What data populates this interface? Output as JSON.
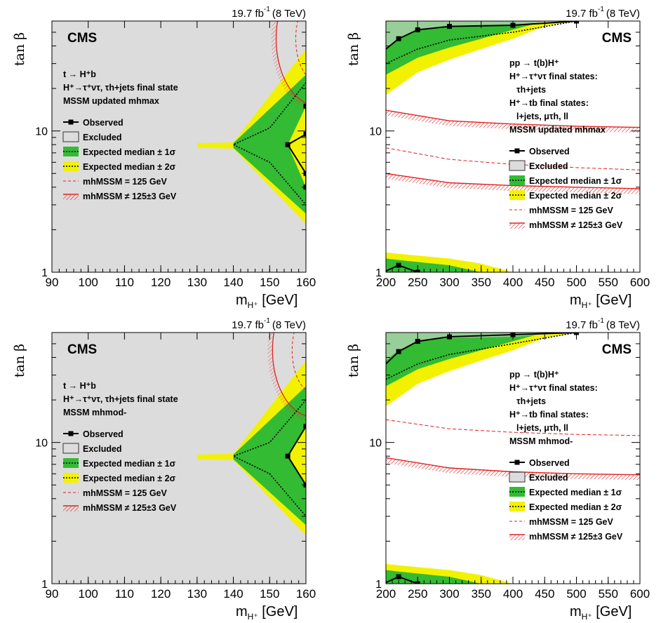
{
  "common": {
    "lumi_label": "19.7 fb",
    "lumi_sup": "-1",
    "energy_label": "(8 TeV)",
    "cms_label": "CMS",
    "ylabel": "tan β",
    "xlabel": "m",
    "xlabel_sub": "H⁺",
    "xlabel_unit": " [GeV]",
    "colors": {
      "excluded": "#dcdcdc",
      "sigma1": "#33bb33",
      "sigma2": "#f2f200",
      "observed": "#000000",
      "expected": "#000000",
      "higgs": "#e02020"
    }
  },
  "chart_data": [
    {
      "type": "area",
      "panel": "top-left",
      "xlim": [
        90,
        160
      ],
      "ylim": [
        1,
        60
      ],
      "yscale": "log",
      "xticks": [
        "90",
        "100",
        "110",
        "120",
        "130",
        "140",
        "150",
        "160"
      ],
      "yticks": [
        "1",
        "10"
      ],
      "legend_position": "left",
      "text_lines": [
        "t → H⁺b",
        "H⁺→τ⁺ντ, τh+jets final state",
        "MSSM updated mhmax"
      ],
      "legend": [
        "Observed",
        "Excluded",
        "Expected median ± 1σ",
        "Expected median ± 2σ",
        "mhMSSM = 125 GeV",
        "mhMSSM ≠ 125±3 GeV"
      ],
      "excluded_all": true,
      "series": [
        {
          "name": "Observed",
          "x": [
            160,
            160,
            155,
            160,
            160
          ],
          "y": [
            15,
            9.5,
            8,
            5,
            4
          ]
        },
        {
          "name": "Expected median",
          "x": [
            160,
            150,
            140,
            150,
            160
          ],
          "y": [
            22,
            10.5,
            8,
            6,
            3
          ]
        },
        {
          "name": "±1σ upper",
          "x": [
            130,
            140,
            160
          ],
          "y": [
            8.1,
            8.2,
            25
          ]
        },
        {
          "name": "±2σ upper",
          "x": [
            130,
            140,
            160
          ],
          "y": [
            8.2,
            8.3,
            38
          ]
        }
      ]
    },
    {
      "type": "area",
      "panel": "top-right",
      "xlim": [
        200,
        600
      ],
      "ylim": [
        1,
        60
      ],
      "yscale": "log",
      "xticks": [
        "200",
        "250",
        "300",
        "350",
        "400",
        "450",
        "500",
        "550",
        "600"
      ],
      "yticks": [
        "1",
        "10"
      ],
      "legend_position": "right",
      "text_lines": [
        "pp → t(b)H⁺",
        "H⁺→τ⁺ντ final states:",
        "τh+jets",
        "H⁺→tb final states:",
        "l+jets, μτh, ll",
        "MSSM updated mhmax"
      ],
      "legend": [
        "Observed",
        "Excluded",
        "Expected median ± 1σ",
        "Expected median ± 2σ",
        "mhMSSM = 125 GeV",
        "mhMSSM ≠ 125±3 GeV"
      ],
      "series": [
        {
          "name": "Observed",
          "x": [
            200,
            220,
            250,
            300,
            400,
            500
          ],
          "y": [
            38,
            45,
            52,
            55,
            56,
            60
          ]
        },
        {
          "name": "Expected median",
          "x": [
            200,
            250,
            300,
            400,
            500
          ],
          "y": [
            30,
            38,
            44,
            50,
            60
          ]
        },
        {
          "name": "Observed low",
          "x": [
            200,
            220,
            250
          ],
          "y": [
            1.02,
            1.12,
            1.0
          ]
        }
      ]
    },
    {
      "type": "area",
      "panel": "bottom-left",
      "xlim": [
        90,
        160
      ],
      "ylim": [
        1,
        60
      ],
      "yscale": "log",
      "xticks": [
        "90",
        "100",
        "110",
        "120",
        "130",
        "140",
        "150",
        "160"
      ],
      "yticks": [
        "1",
        "10"
      ],
      "legend_position": "left",
      "text_lines": [
        "t → H⁺b",
        "H⁺→τ⁺ντ, τh+jets final state",
        "MSSM mhmod-"
      ],
      "legend": [
        "Observed",
        "Excluded",
        "Expected median ± 1σ",
        "Expected median ± 2σ",
        "mhMSSM = 125 GeV",
        "mhMSSM ≠ 125±3 GeV"
      ],
      "excluded_all": true,
      "series": [
        {
          "name": "Observed",
          "x": [
            160,
            155,
            160
          ],
          "y": [
            13,
            8,
            5
          ]
        },
        {
          "name": "Expected median",
          "x": [
            160,
            150,
            140,
            150,
            160
          ],
          "y": [
            20,
            10,
            8,
            6,
            3
          ]
        }
      ]
    },
    {
      "type": "area",
      "panel": "bottom-right",
      "xlim": [
        200,
        600
      ],
      "ylim": [
        1,
        60
      ],
      "yscale": "log",
      "xticks": [
        "200",
        "250",
        "300",
        "350",
        "400",
        "450",
        "500",
        "550",
        "600"
      ],
      "yticks": [
        "1",
        "10"
      ],
      "legend_position": "right",
      "text_lines": [
        "pp → t(b)H⁺",
        "H⁺→τ⁺ντ final states:",
        "τh+jets",
        "H⁺→tb final states:",
        "l+jets, μτh, ll",
        "MSSM mhmod-"
      ],
      "legend": [
        "Observed",
        "Excluded",
        "Expected median ± 1σ",
        "Expected median ± 2σ",
        "mhMSSM = 125 GeV",
        "mhMSSM ≠ 125±3 GeV"
      ],
      "series": [
        {
          "name": "Observed",
          "x": [
            200,
            220,
            250,
            300,
            400,
            500
          ],
          "y": [
            36,
            44,
            52,
            56,
            58,
            60
          ]
        },
        {
          "name": "Expected median",
          "x": [
            200,
            250,
            300,
            400,
            500
          ],
          "y": [
            28,
            36,
            42,
            50,
            60
          ]
        },
        {
          "name": "Observed low",
          "x": [
            200,
            220,
            250
          ],
          "y": [
            1.02,
            1.12,
            1.0
          ]
        }
      ]
    }
  ]
}
